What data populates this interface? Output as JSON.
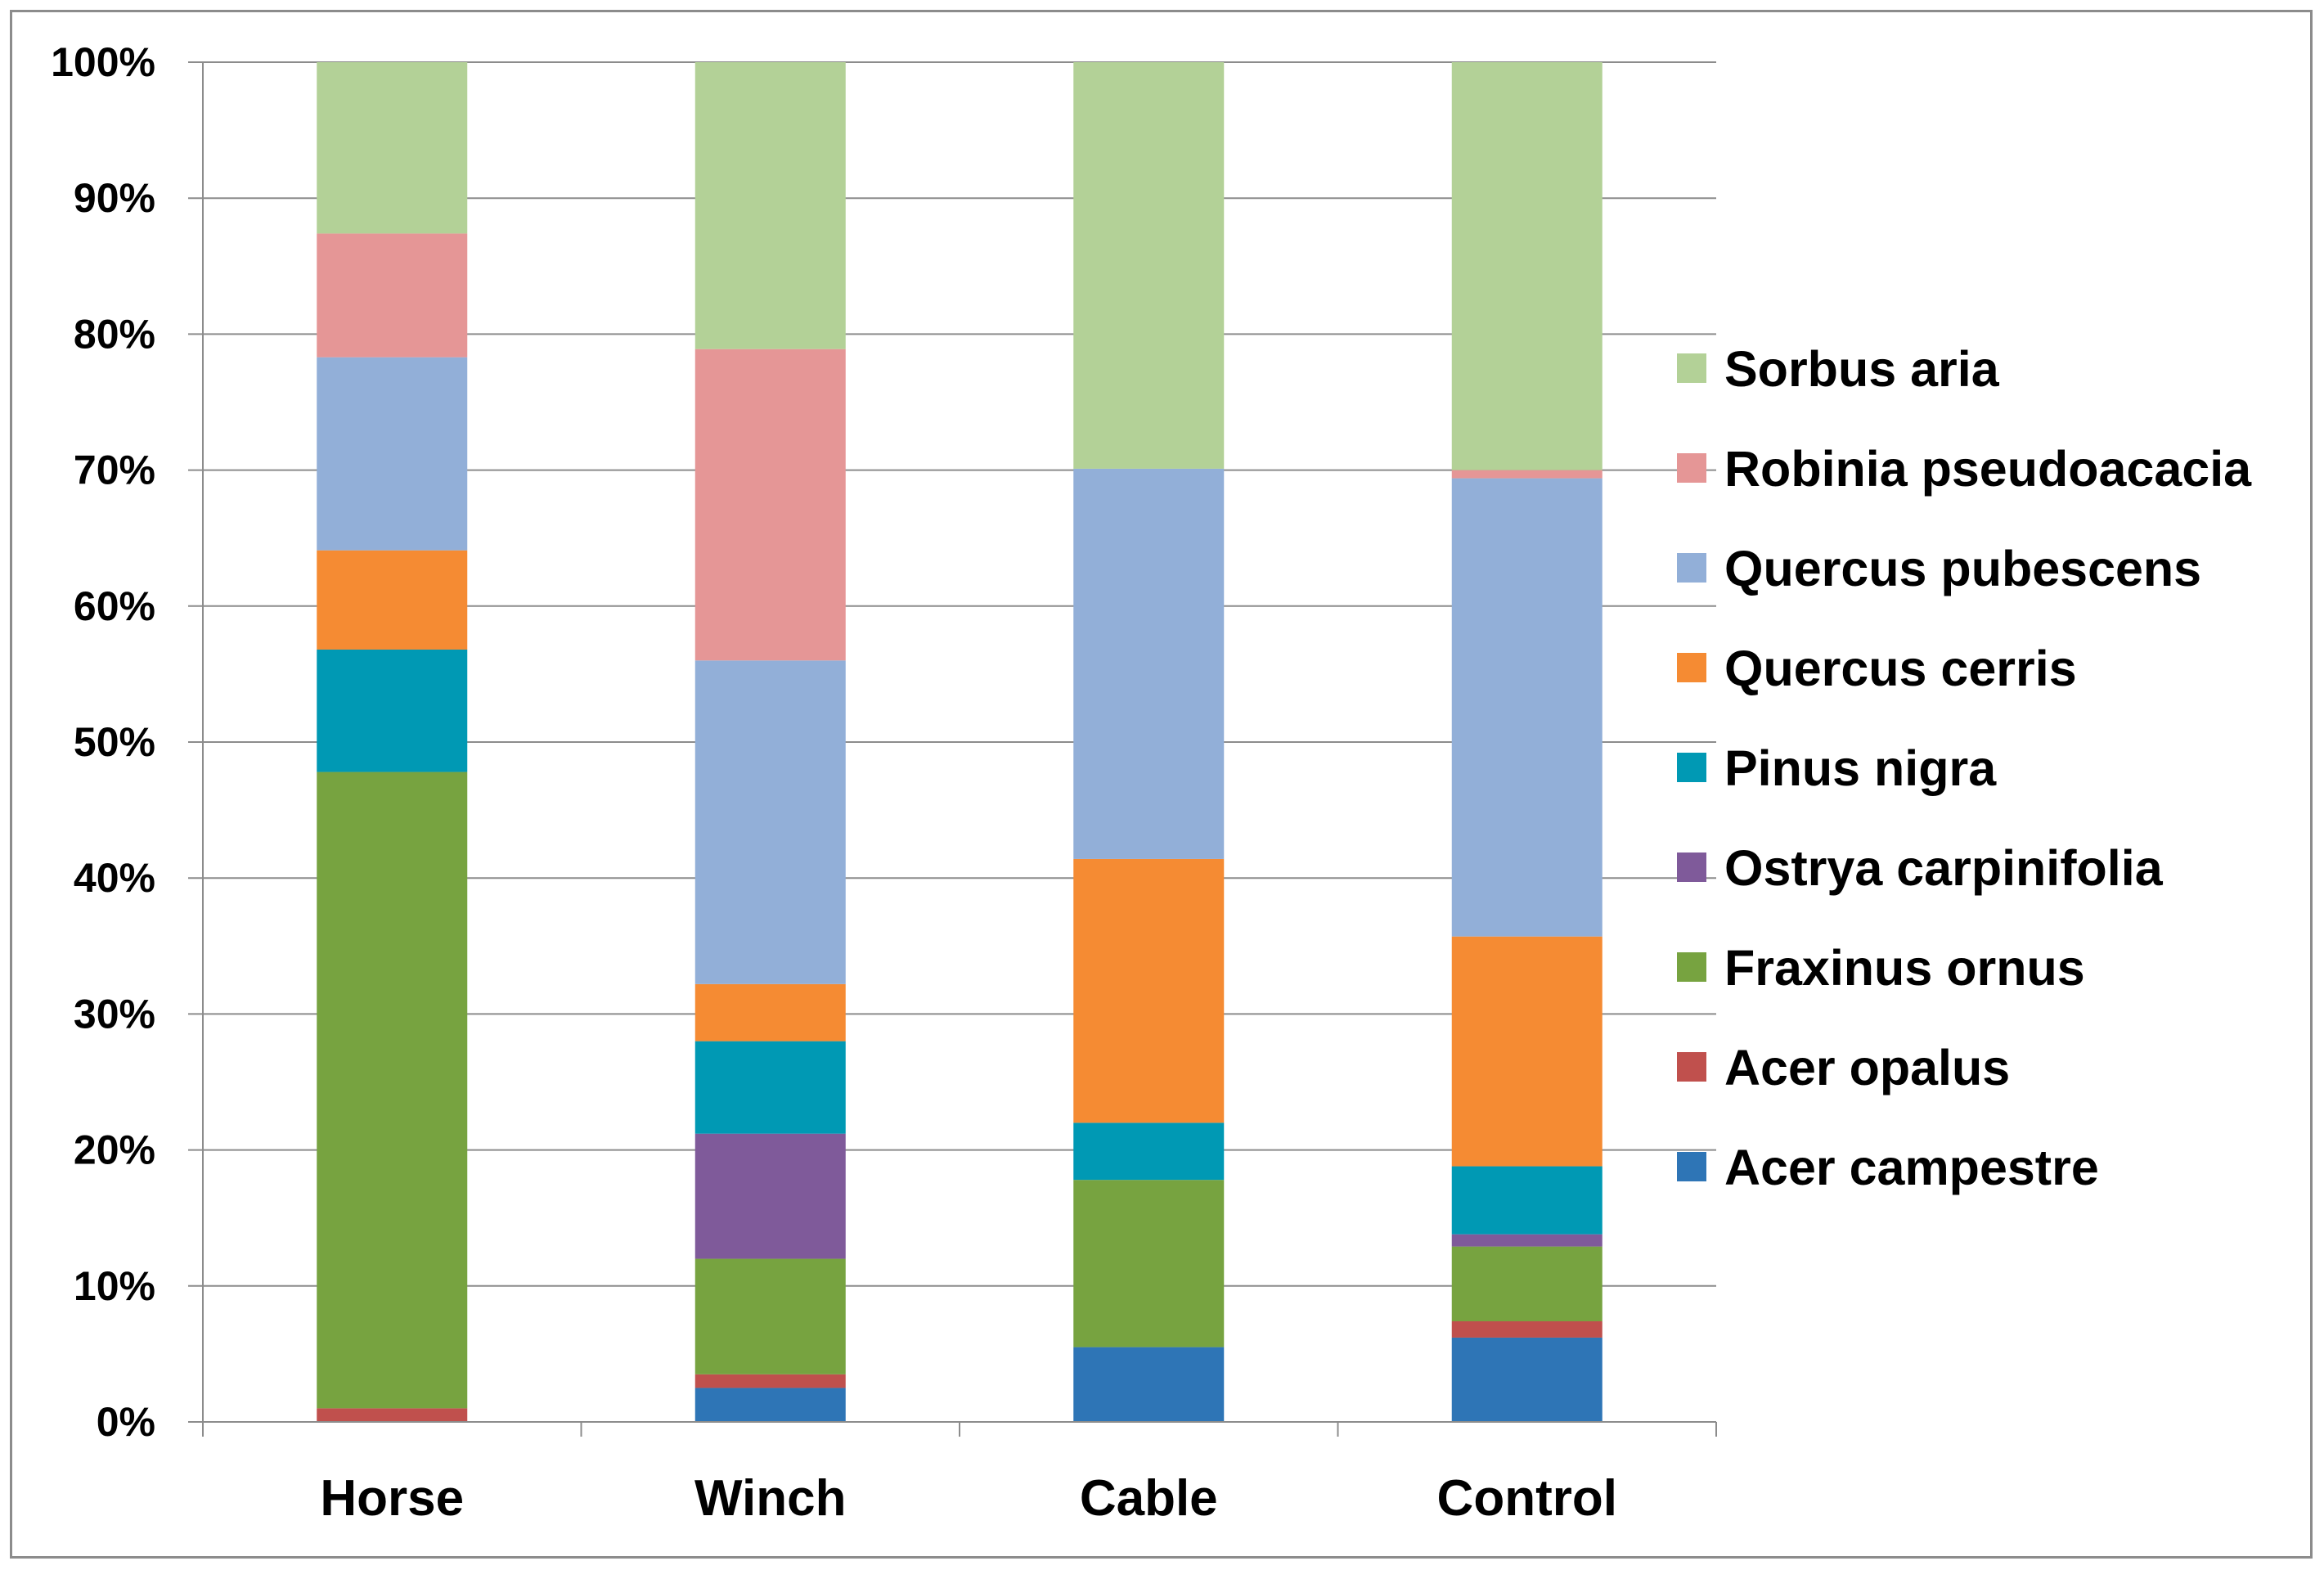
{
  "chart_data": {
    "type": "bar",
    "stacked": true,
    "percent": true,
    "categories": [
      "Horse",
      "Winch",
      "Cable",
      "Control"
    ],
    "series": [
      {
        "name": "Acer campestre",
        "color": "#2E75B6",
        "values": [
          0.0,
          2.5,
          5.5,
          6.2
        ]
      },
      {
        "name": "Acer opalus",
        "color": "#C0504D",
        "values": [
          1.0,
          1.0,
          0.0,
          1.2
        ]
      },
      {
        "name": "Fraxinus ornus",
        "color": "#77A340",
        "values": [
          46.8,
          8.5,
          12.3,
          5.5
        ]
      },
      {
        "name": "Ostrya carpinifolia",
        "color": "#7F5A9A",
        "values": [
          0.0,
          9.2,
          0.0,
          0.9
        ]
      },
      {
        "name": "Pinus nigra",
        "color": "#0099B4",
        "values": [
          9.0,
          6.8,
          4.2,
          5.0
        ]
      },
      {
        "name": "Quercus cerris",
        "color": "#F58B33",
        "values": [
          7.3,
          4.2,
          19.4,
          16.9
        ]
      },
      {
        "name": "Quercus pubescens",
        "color": "#92AFD8",
        "values": [
          14.2,
          23.8,
          28.7,
          33.7
        ]
      },
      {
        "name": "Robinia pseudoacacia",
        "color": "#E59696",
        "values": [
          9.1,
          22.9,
          0.0,
          0.6
        ]
      },
      {
        "name": "Sorbus aria",
        "color": "#B3D197",
        "values": [
          12.6,
          21.1,
          29.9,
          30.0
        ]
      }
    ],
    "yticks": [
      "0%",
      "10%",
      "20%",
      "30%",
      "40%",
      "50%",
      "60%",
      "70%",
      "80%",
      "90%",
      "100%"
    ],
    "ylim": [
      0,
      100
    ],
    "grid": true,
    "legend_position": "right",
    "legend_order": [
      "Sorbus aria",
      "Robinia pseudoacacia",
      "Quercus pubescens",
      "Quercus cerris",
      "Pinus nigra",
      "Ostrya carpinifolia",
      "Fraxinus ornus",
      "Acer opalus",
      "Acer campestre"
    ],
    "title": "",
    "xlabel": "",
    "ylabel": ""
  },
  "colors": {
    "gridline": "#8c8c8c",
    "axis": "#8c8c8c",
    "border": "#8c8c8c"
  }
}
